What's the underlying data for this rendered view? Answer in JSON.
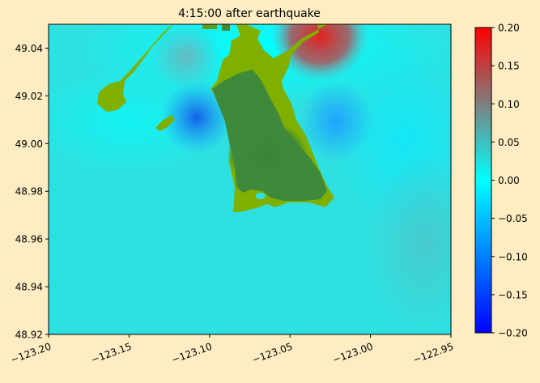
{
  "chart_data": {
    "type": "heatmap",
    "title": "4:15:00 after earthquake",
    "xlabel": "",
    "ylabel": "",
    "xlim": [
      -123.2,
      -122.95
    ],
    "ylim": [
      48.92,
      49.05
    ],
    "x_ticks": [
      -123.2,
      -123.15,
      -123.1,
      -123.05,
      -123.0,
      -122.95
    ],
    "x_tick_labels": [
      "−123.20",
      "−123.15",
      "−123.10",
      "−123.05",
      "−123.00",
      "−122.95"
    ],
    "y_ticks": [
      48.92,
      48.94,
      48.96,
      48.98,
      49.0,
      49.02,
      49.04
    ],
    "y_tick_labels": [
      "48.92",
      "48.94",
      "48.96",
      "48.98",
      "49.00",
      "49.02",
      "49.04"
    ],
    "colorbar": {
      "range": [
        -0.2,
        0.2
      ],
      "ticks": [
        -0.2,
        -0.15,
        -0.1,
        -0.05,
        0.0,
        0.05,
        0.1,
        0.15,
        0.2
      ],
      "tick_labels": [
        "−0.20",
        "−0.15",
        "−0.10",
        "−0.05",
        "0.00",
        "0.05",
        "0.10",
        "0.15",
        "0.20"
      ],
      "colormap": [
        "#0000ff",
        "#00ffff",
        "#ff0000"
      ]
    },
    "grid": false,
    "colors": {
      "background": "#feedc2",
      "water_base": "#2fe0e0",
      "land_dry": "#7fb000",
      "land_wet": "#3e8a3a",
      "high_water": "#e22828",
      "low_water": "#1e6ee6"
    }
  }
}
